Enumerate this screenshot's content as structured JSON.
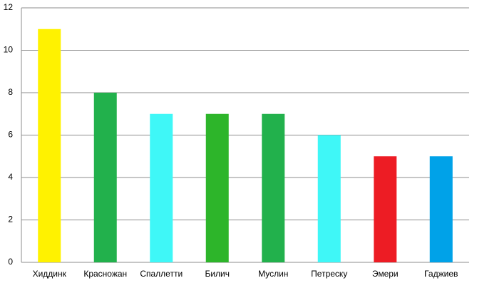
{
  "chart_data": {
    "type": "bar",
    "categories": [
      "Хиддинк",
      "Красножан",
      "Спаллетти",
      "Билич",
      "Муслин",
      "Петреску",
      "Эмери",
      "Гаджиев"
    ],
    "values": [
      11,
      8,
      7,
      7,
      7,
      6,
      5,
      5
    ],
    "colors": [
      "#fff200",
      "#22b14c",
      "#3ff7f7",
      "#2db52a",
      "#22b14c",
      "#3ff7f7",
      "#ed1c24",
      "#00a2e8"
    ],
    "ylim": [
      0,
      12
    ],
    "yticks": [
      0,
      2,
      4,
      6,
      8,
      10,
      12
    ],
    "grid": true
  }
}
